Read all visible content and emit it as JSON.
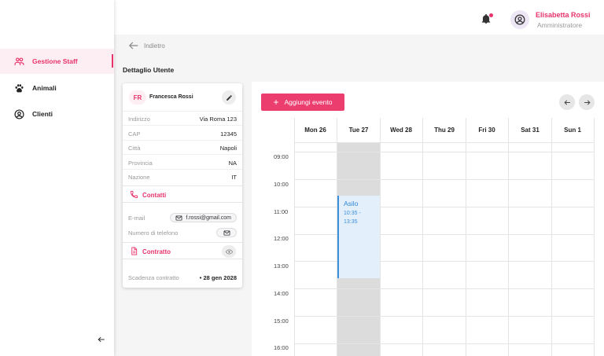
{
  "sidebar": {
    "items": [
      {
        "label": "Gestione Staff",
        "icon": "people-icon",
        "active": true
      },
      {
        "label": "Animali",
        "icon": "paw-icon",
        "active": false
      },
      {
        "label": "Clienti",
        "icon": "account-circle-icon",
        "active": false
      }
    ],
    "collapse_icon": "arrow-left-icon"
  },
  "header": {
    "notification_icon": "bell-icon",
    "user_name": "Elisabetta Rossi",
    "user_role": "Amministratore"
  },
  "breadcrumb": {
    "back_label": "Indietro"
  },
  "page": {
    "title": "Dettaglio Utente"
  },
  "user_card": {
    "initials": "FR",
    "name": "Francesca Rossi",
    "address_rows": [
      {
        "label": "Indirizzo",
        "value": "Via Roma 123"
      },
      {
        "label": "CAP",
        "value": "12345"
      },
      {
        "label": "Città",
        "value": "Napoli"
      },
      {
        "label": "Provincia",
        "value": "NA"
      },
      {
        "label": "Nazione",
        "value": "IT"
      }
    ],
    "contacts": {
      "title": "Contatti",
      "email_label": "E-mail",
      "email_value": "f.rossi@gmail.com",
      "phone_label": "Numero di telefono",
      "phone_value": ""
    },
    "contract": {
      "title": "Contratto",
      "expiry_label": "Scadenza contratto",
      "expiry_value": "28 gen 2028"
    }
  },
  "calendar": {
    "add_button_label": "Aggiungi evento",
    "days": [
      "Mon 26",
      "Tue 27",
      "Wed 28",
      "Thu 29",
      "Fri 30",
      "Sat 31",
      "Sun 1"
    ],
    "hours": [
      "09:00",
      "10:00",
      "11:00",
      "12:00",
      "13:00",
      "14:00",
      "15:00",
      "16:00"
    ],
    "events": [
      {
        "title": "Asilo",
        "time": "10:35 - 13:35",
        "day": "Tue 27"
      }
    ],
    "colors": {
      "accent": "#e8336b",
      "event_bg": "#e3f0fc",
      "event_border": "#3b8fdc",
      "unavailable": "#dcdcdc"
    }
  }
}
